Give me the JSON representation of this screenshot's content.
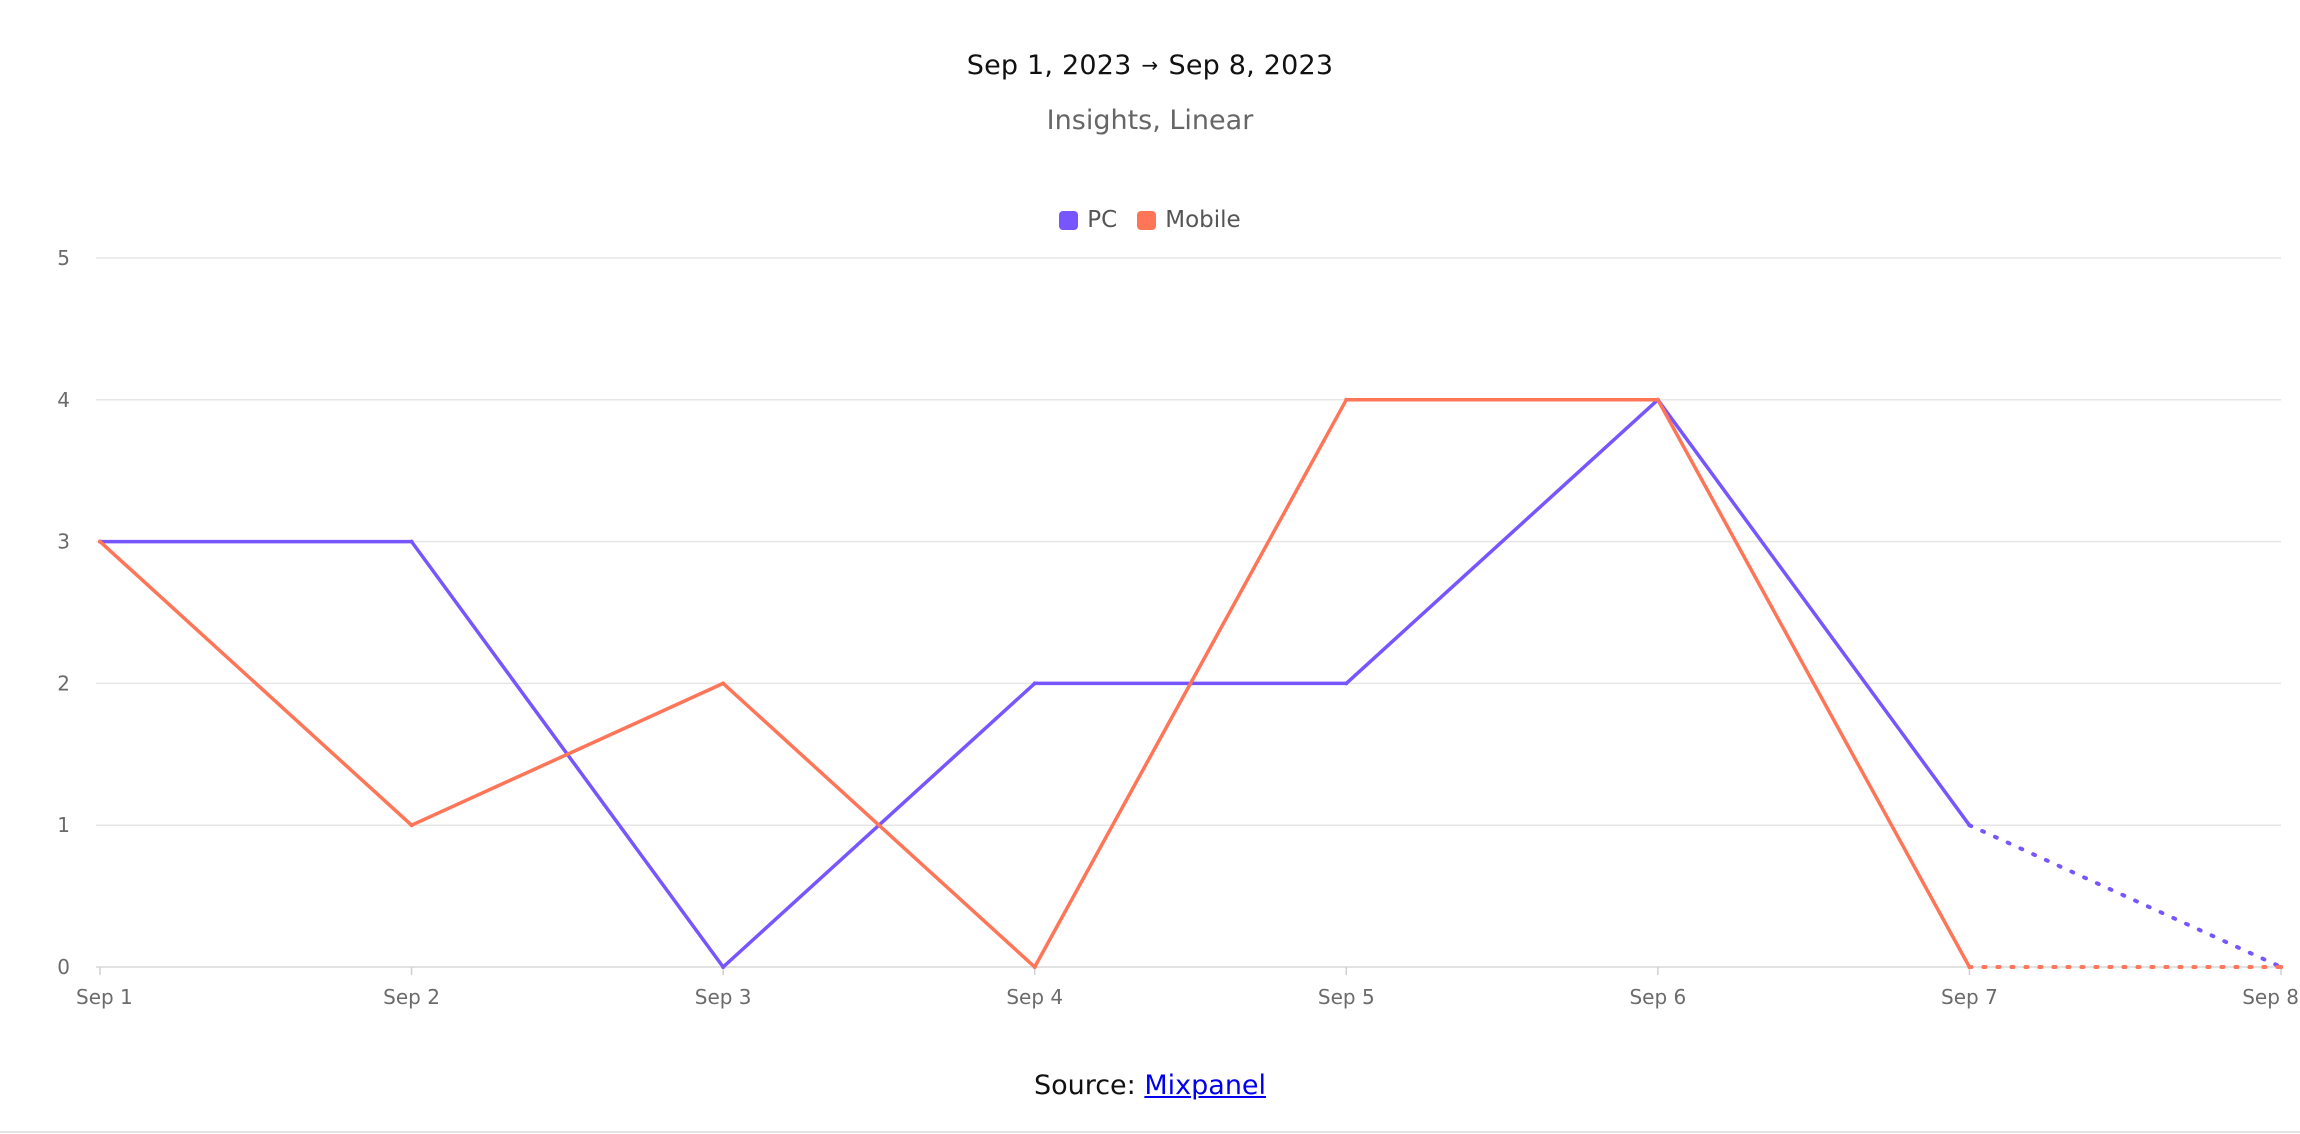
{
  "header": {
    "date_start": "Sep 1, 2023",
    "arrow": "→",
    "date_end": "Sep 8, 2023",
    "subtitle": "Insights, Linear"
  },
  "source": {
    "prefix": "Source: ",
    "link_text": "Mixpanel"
  },
  "chart_data": {
    "type": "line",
    "title": "",
    "xlabel": "",
    "ylabel": "",
    "categories": [
      "Sep 1",
      "Sep 2",
      "Sep 3",
      "Sep 4",
      "Sep 5",
      "Sep 6",
      "Sep 7",
      "Sep 8"
    ],
    "y_ticks": [
      "0",
      "1",
      "2",
      "3",
      "4",
      "5"
    ],
    "ylim": [
      0,
      5
    ],
    "grid": true,
    "legend_position": "top-center",
    "series": [
      {
        "name": "PC",
        "color": "#7856ff",
        "values": [
          3,
          3,
          0,
          2,
          2,
          4,
          1,
          0
        ],
        "incomplete_from_index": 6
      },
      {
        "name": "Mobile",
        "color": "#ff7557",
        "values": [
          3,
          1,
          2,
          0,
          4,
          4,
          0,
          0
        ],
        "incomplete_from_index": 6
      }
    ]
  }
}
